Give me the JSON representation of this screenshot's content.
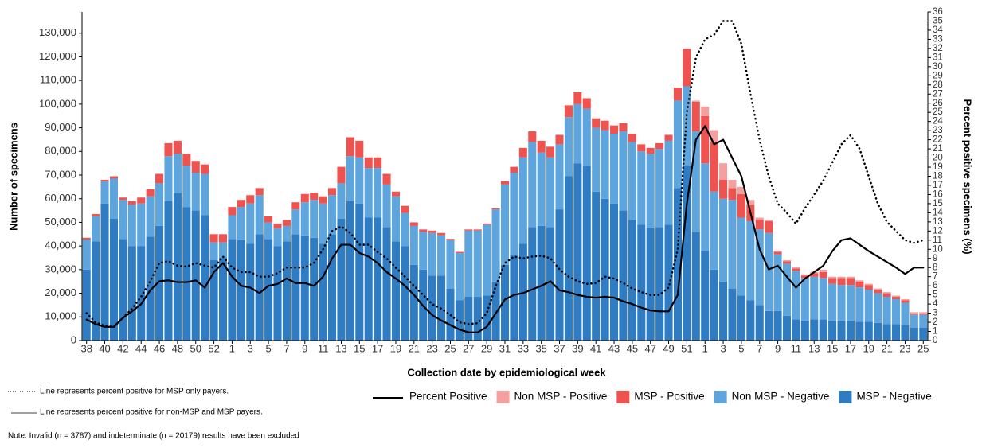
{
  "chart_data": {
    "type": "bar",
    "stacked": true,
    "x_label": "Collection date by epidemiological week",
    "y_label": "Number of specimens",
    "y2_label": "Percent positive specimens (%)",
    "categories": [
      "38",
      null,
      "40",
      null,
      "42",
      null,
      "44",
      null,
      "46",
      null,
      "48",
      null,
      "50",
      null,
      "52",
      null,
      "1",
      null,
      "3",
      null,
      "5",
      null,
      "7",
      null,
      "9",
      null,
      "11",
      null,
      "13",
      null,
      "15",
      null,
      "17",
      null,
      "19",
      null,
      "21",
      null,
      "23",
      null,
      "25",
      null,
      "27",
      null,
      "29",
      null,
      "31",
      null,
      "33",
      null,
      "35",
      null,
      "37",
      null,
      "39",
      null,
      "41",
      null,
      "43",
      null,
      "45",
      null,
      "47",
      null,
      "49",
      null,
      "51",
      null,
      "1",
      null,
      "3",
      null,
      "5",
      null,
      "7",
      null,
      "9",
      null,
      "11",
      null,
      "13",
      null,
      "15",
      null,
      "17",
      null,
      "19",
      null,
      "21",
      null,
      "23",
      null,
      "25"
    ],
    "series": [
      {
        "name": "MSP - Negative",
        "color": "#2f7cc3",
        "values": [
          30000,
          42000,
          58000,
          51500,
          43000,
          40000,
          40000,
          44000,
          48500,
          59000,
          62500,
          56500,
          55000,
          53000,
          34000,
          35000,
          43000,
          42500,
          41000,
          45000,
          43000,
          40000,
          42000,
          45000,
          44500,
          43500,
          41000,
          45000,
          51500,
          59000,
          58000,
          52000,
          52000,
          48000,
          42000,
          40000,
          32000,
          30000,
          27500,
          27500,
          22000,
          17000,
          18500,
          18500,
          19000,
          25000,
          32000,
          36000,
          41000,
          48000,
          48500,
          48000,
          55500,
          69500,
          75000,
          74000,
          63000,
          60000,
          58000,
          55000,
          51000,
          49000,
          47500,
          48000,
          49000,
          64500,
          74000,
          46000,
          38000,
          30000,
          25000,
          22000,
          19000,
          17000,
          15000,
          12500,
          12500,
          10500,
          9000,
          8500,
          9000,
          9000,
          8500,
          8500,
          8500,
          8000,
          8000,
          7500,
          7000,
          7000,
          6500,
          5500,
          5500
        ]
      },
      {
        "name": "Non MSP - Negative",
        "color": "#5ea5de",
        "values": [
          12700,
          10500,
          9300,
          17000,
          16500,
          17500,
          18000,
          17000,
          18000,
          19000,
          16500,
          17500,
          16000,
          17500,
          7500,
          6500,
          10000,
          14000,
          17000,
          16500,
          7000,
          7500,
          6500,
          10500,
          14000,
          16000,
          17000,
          16500,
          15000,
          19000,
          19500,
          21000,
          21000,
          18000,
          19000,
          14000,
          16500,
          16000,
          18000,
          17000,
          20500,
          20000,
          28000,
          28000,
          30000,
          30500,
          34000,
          35000,
          36500,
          36000,
          31000,
          29500,
          27500,
          25000,
          25000,
          24000,
          27000,
          29000,
          29500,
          33500,
          33000,
          31000,
          31500,
          33000,
          35500,
          37000,
          33500,
          42500,
          37000,
          33000,
          35000,
          37500,
          33000,
          33500,
          32000,
          33000,
          24000,
          22000,
          20500,
          18000,
          18000,
          17500,
          15500,
          15000,
          15000,
          14500,
          13500,
          12500,
          11500,
          10500,
          9500,
          5500,
          5500
        ]
      },
      {
        "name": "MSP - Positive",
        "color": "#ef5350",
        "values": [
          800,
          1000,
          700,
          1000,
          1000,
          1500,
          2500,
          3000,
          4000,
          5500,
          5500,
          5000,
          5000,
          4000,
          3500,
          3500,
          3500,
          3000,
          3500,
          3000,
          2500,
          2000,
          2500,
          3000,
          3500,
          3000,
          3000,
          3000,
          7000,
          8000,
          7000,
          4500,
          4500,
          4500,
          2000,
          3000,
          1500,
          1000,
          1000,
          1000,
          500,
          500,
          500,
          500,
          500,
          500,
          1500,
          2500,
          4000,
          4500,
          5000,
          4500,
          4000,
          5000,
          5000,
          4500,
          4000,
          4000,
          3500,
          3500,
          3500,
          3000,
          2500,
          2500,
          2500,
          5500,
          16000,
          12500,
          20000,
          21000,
          8000,
          5000,
          10000,
          7000,
          4000,
          5000,
          1000,
          1000,
          1000,
          1000,
          1500,
          2500,
          2500,
          3000,
          3000,
          2500,
          2000,
          1500,
          1500,
          1000,
          1000,
          500,
          500
        ]
      },
      {
        "name": "Non MSP - Positive",
        "color": "#f4a09f",
        "values": [
          0,
          0,
          0,
          0,
          0,
          0,
          0,
          0,
          0,
          0,
          0,
          0,
          0,
          0,
          0,
          0,
          0,
          0,
          0,
          0,
          0,
          0,
          0,
          0,
          0,
          0,
          0,
          0,
          0,
          0,
          0,
          0,
          0,
          0,
          0,
          0,
          0,
          0,
          0,
          0,
          0,
          0,
          0,
          0,
          0,
          0,
          0,
          0,
          0,
          0,
          0,
          0,
          0,
          0,
          0,
          0,
          0,
          0,
          0,
          0,
          0,
          0,
          0,
          0,
          0,
          0,
          0,
          500,
          4000,
          5000,
          7000,
          3500,
          3000,
          2000,
          1000,
          500,
          500,
          500,
          500,
          500,
          500,
          1000,
          500,
          500,
          500,
          500,
          500,
          500,
          500,
          500,
          500,
          500,
          500
        ]
      }
    ],
    "line_series": [
      {
        "name": "Percent Positive",
        "color": "#000000",
        "axis": "y2",
        "values": [
          2.3,
          1.8,
          1.5,
          1.5,
          2.5,
          3.2,
          4,
          5.5,
          6.5,
          6.6,
          6.4,
          6.4,
          6.6,
          5.8,
          7.5,
          8.5,
          7,
          6,
          5.8,
          5.2,
          6,
          6.2,
          6.8,
          6.3,
          6.3,
          6,
          7,
          9,
          10.5,
          10.5,
          9.6,
          9.2,
          8.5,
          7.5,
          6.8,
          6,
          5,
          3.8,
          2.8,
          2.2,
          1.7,
          1.2,
          0.9,
          0.9,
          1.5,
          3,
          4.5,
          5,
          5.2,
          5.6,
          6,
          6.5,
          5.5,
          5.3,
          5,
          4.8,
          4.7,
          4.8,
          4.7,
          4.3,
          4,
          3.6,
          3.3,
          3.2,
          3.2,
          5,
          15,
          22,
          23.5,
          21.5,
          22,
          20,
          18,
          14,
          10,
          7.8,
          8.2,
          7,
          5.8,
          6.8,
          7.5,
          8.2,
          9.8,
          11,
          11.2,
          10.5,
          9.8,
          9.2,
          8.6,
          8,
          7.3,
          8,
          8
        ]
      },
      {
        "color": "#000000",
        "axis": "y2",
        "dash": "dotted",
        "values": [
          3,
          2,
          1.6,
          1.5,
          2.5,
          3.5,
          4.8,
          6.5,
          8.5,
          8.7,
          8.2,
          8.1,
          8.5,
          8.2,
          8,
          9.2,
          8,
          7.5,
          7.5,
          7,
          7,
          7.4,
          8,
          8,
          8,
          8.5,
          10,
          12,
          12.5,
          11.8,
          10.5,
          10.5,
          9.7,
          9,
          8,
          7,
          6,
          5,
          4,
          3.5,
          2.8,
          2,
          1.8,
          1.9,
          3,
          6,
          8.5,
          9.2,
          9,
          9.2,
          9.3,
          9,
          7.8,
          7,
          6.5,
          6.2,
          6.3,
          7,
          6.8,
          6.3,
          5.7,
          5.3,
          5,
          5,
          5.8,
          10,
          25,
          31,
          33,
          33.5,
          35,
          35,
          32.5,
          27,
          22,
          18,
          15,
          14,
          12.8,
          14.5,
          16,
          17.5,
          19.5,
          21.5,
          22.5,
          21,
          18,
          15,
          13,
          12,
          11,
          10.7,
          11
        ]
      }
    ],
    "ylim": [
      0,
      139000
    ],
    "yticks": [
      0,
      {
        "value": 10000,
        "label": "10,000"
      },
      {
        "value": 20000,
        "label": "20,000"
      },
      {
        "value": 30000,
        "label": "30,000"
      },
      {
        "value": 40000,
        "label": "40,000"
      },
      {
        "value": 50000,
        "label": "50,000"
      },
      {
        "value": 60000,
        "label": "60,000"
      },
      {
        "value": 70000,
        "label": "70,000"
      },
      {
        "value": 80000,
        "label": "80,000"
      },
      {
        "value": 90000,
        "label": "90,000"
      },
      {
        "value": 100000,
        "label": "100,000"
      },
      {
        "value": 110000,
        "label": "110,000"
      },
      {
        "value": 120000,
        "label": "120,000"
      },
      {
        "value": 130000,
        "label": "130,000"
      }
    ],
    "y2lim": [
      0,
      36
    ],
    "y2ticks": [
      0,
      1,
      2,
      3,
      4,
      5,
      6,
      7,
      8,
      9,
      10,
      11,
      12,
      13,
      14,
      15,
      16,
      17,
      18,
      19,
      20,
      21,
      22,
      23,
      24,
      25,
      26,
      27,
      28,
      29,
      30,
      31,
      32,
      33,
      34,
      35,
      36
    ],
    "notes": [
      "Line represents percent positive for MSP only payers.",
      "Line represents percent positive for non-MSP and MSP payers.",
      "Note: Invalid (n = 3787) and indeterminate (n = 20179) results have been excluded"
    ],
    "grid": false
  }
}
